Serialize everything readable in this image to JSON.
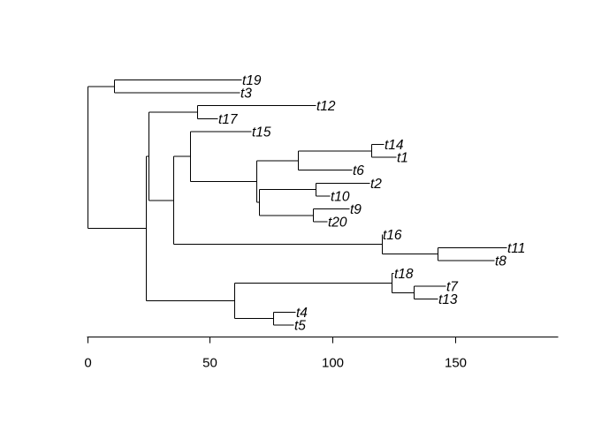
{
  "tree": {
    "ladderized": true,
    "leaves": [
      {
        "label": "t19",
        "depth": 63
      },
      {
        "label": "t3",
        "depth": 62
      },
      {
        "label": "t12",
        "depth": 93
      },
      {
        "label": "t17",
        "depth": 53
      },
      {
        "label": "t15",
        "depth": 67
      },
      {
        "label": "t14",
        "depth": 121
      },
      {
        "label": "t1",
        "depth": 126
      },
      {
        "label": "t6",
        "depth": 108
      },
      {
        "label": "t2",
        "depth": 115
      },
      {
        "label": "t10",
        "depth": 99
      },
      {
        "label": "t9",
        "depth": 107
      },
      {
        "label": "t20",
        "depth": 98
      },
      {
        "label": "t16",
        "depth": 120
      },
      {
        "label": "t11",
        "depth": 171
      },
      {
        "label": "t8",
        "depth": 166
      },
      {
        "label": "t18",
        "depth": 125
      },
      {
        "label": "t7",
        "depth": 146
      },
      {
        "label": "t13",
        "depth": 143
      },
      {
        "label": "t4",
        "depth": 85
      },
      {
        "label": "t5",
        "depth": 84
      }
    ],
    "internal_nodes": [
      {
        "id": "root",
        "depth": 0,
        "children": [
          "nA",
          "nB"
        ]
      },
      {
        "id": "nA",
        "depth": 11,
        "children": [
          "t19",
          "t3"
        ]
      },
      {
        "id": "nB",
        "depth": 24,
        "children": [
          "nC",
          "nK"
        ]
      },
      {
        "id": "nC",
        "depth": 25,
        "children": [
          "nD",
          "nE"
        ]
      },
      {
        "id": "nD",
        "depth": 45,
        "children": [
          "t12",
          "t17"
        ]
      },
      {
        "id": "nE",
        "depth": 35,
        "children": [
          "nF",
          "nJ"
        ]
      },
      {
        "id": "nF",
        "depth": 42,
        "children": [
          "t15",
          "nG"
        ]
      },
      {
        "id": "nG",
        "depth": 69,
        "children": [
          "nH",
          "nI"
        ]
      },
      {
        "id": "nH",
        "depth": 86,
        "children": [
          "nH1",
          "t6"
        ]
      },
      {
        "id": "nH1",
        "depth": 116,
        "children": [
          "t14",
          "t1"
        ]
      },
      {
        "id": "nI",
        "depth": 70,
        "children": [
          "nI1",
          "nI2"
        ]
      },
      {
        "id": "nI1",
        "depth": 93,
        "children": [
          "t2",
          "t10"
        ]
      },
      {
        "id": "nI2",
        "depth": 92,
        "children": [
          "t9",
          "t20"
        ]
      },
      {
        "id": "nJ",
        "depth": 120,
        "children": [
          "t16",
          "nJ1"
        ]
      },
      {
        "id": "nJ1",
        "depth": 143,
        "children": [
          "t11",
          "t8"
        ]
      },
      {
        "id": "nK",
        "depth": 60,
        "children": [
          "nL",
          "nM"
        ]
      },
      {
        "id": "nL",
        "depth": 124,
        "children": [
          "t18",
          "nL1"
        ]
      },
      {
        "id": "nL1",
        "depth": 133,
        "children": [
          "t7",
          "t13"
        ]
      },
      {
        "id": "nM",
        "depth": 76,
        "children": [
          "t4",
          "t5"
        ]
      }
    ]
  },
  "axis": {
    "ticks": [
      0,
      50,
      100,
      150
    ],
    "tick_labels": [
      "0",
      "50",
      "100",
      "150"
    ],
    "range": [
      0,
      193
    ]
  },
  "chart_data": {
    "type": "phylogenetic-tree",
    "tips": [
      "t19",
      "t3",
      "t12",
      "t17",
      "t15",
      "t14",
      "t1",
      "t6",
      "t2",
      "t10",
      "t9",
      "t20",
      "t16",
      "t11",
      "t8",
      "t18",
      "t7",
      "t13",
      "t4",
      "t5"
    ],
    "tip_depths": [
      63,
      62,
      93,
      53,
      67,
      121,
      126,
      108,
      115,
      99,
      107,
      98,
      120,
      171,
      166,
      125,
      146,
      143,
      85,
      84
    ],
    "xlim": [
      0,
      193
    ]
  }
}
